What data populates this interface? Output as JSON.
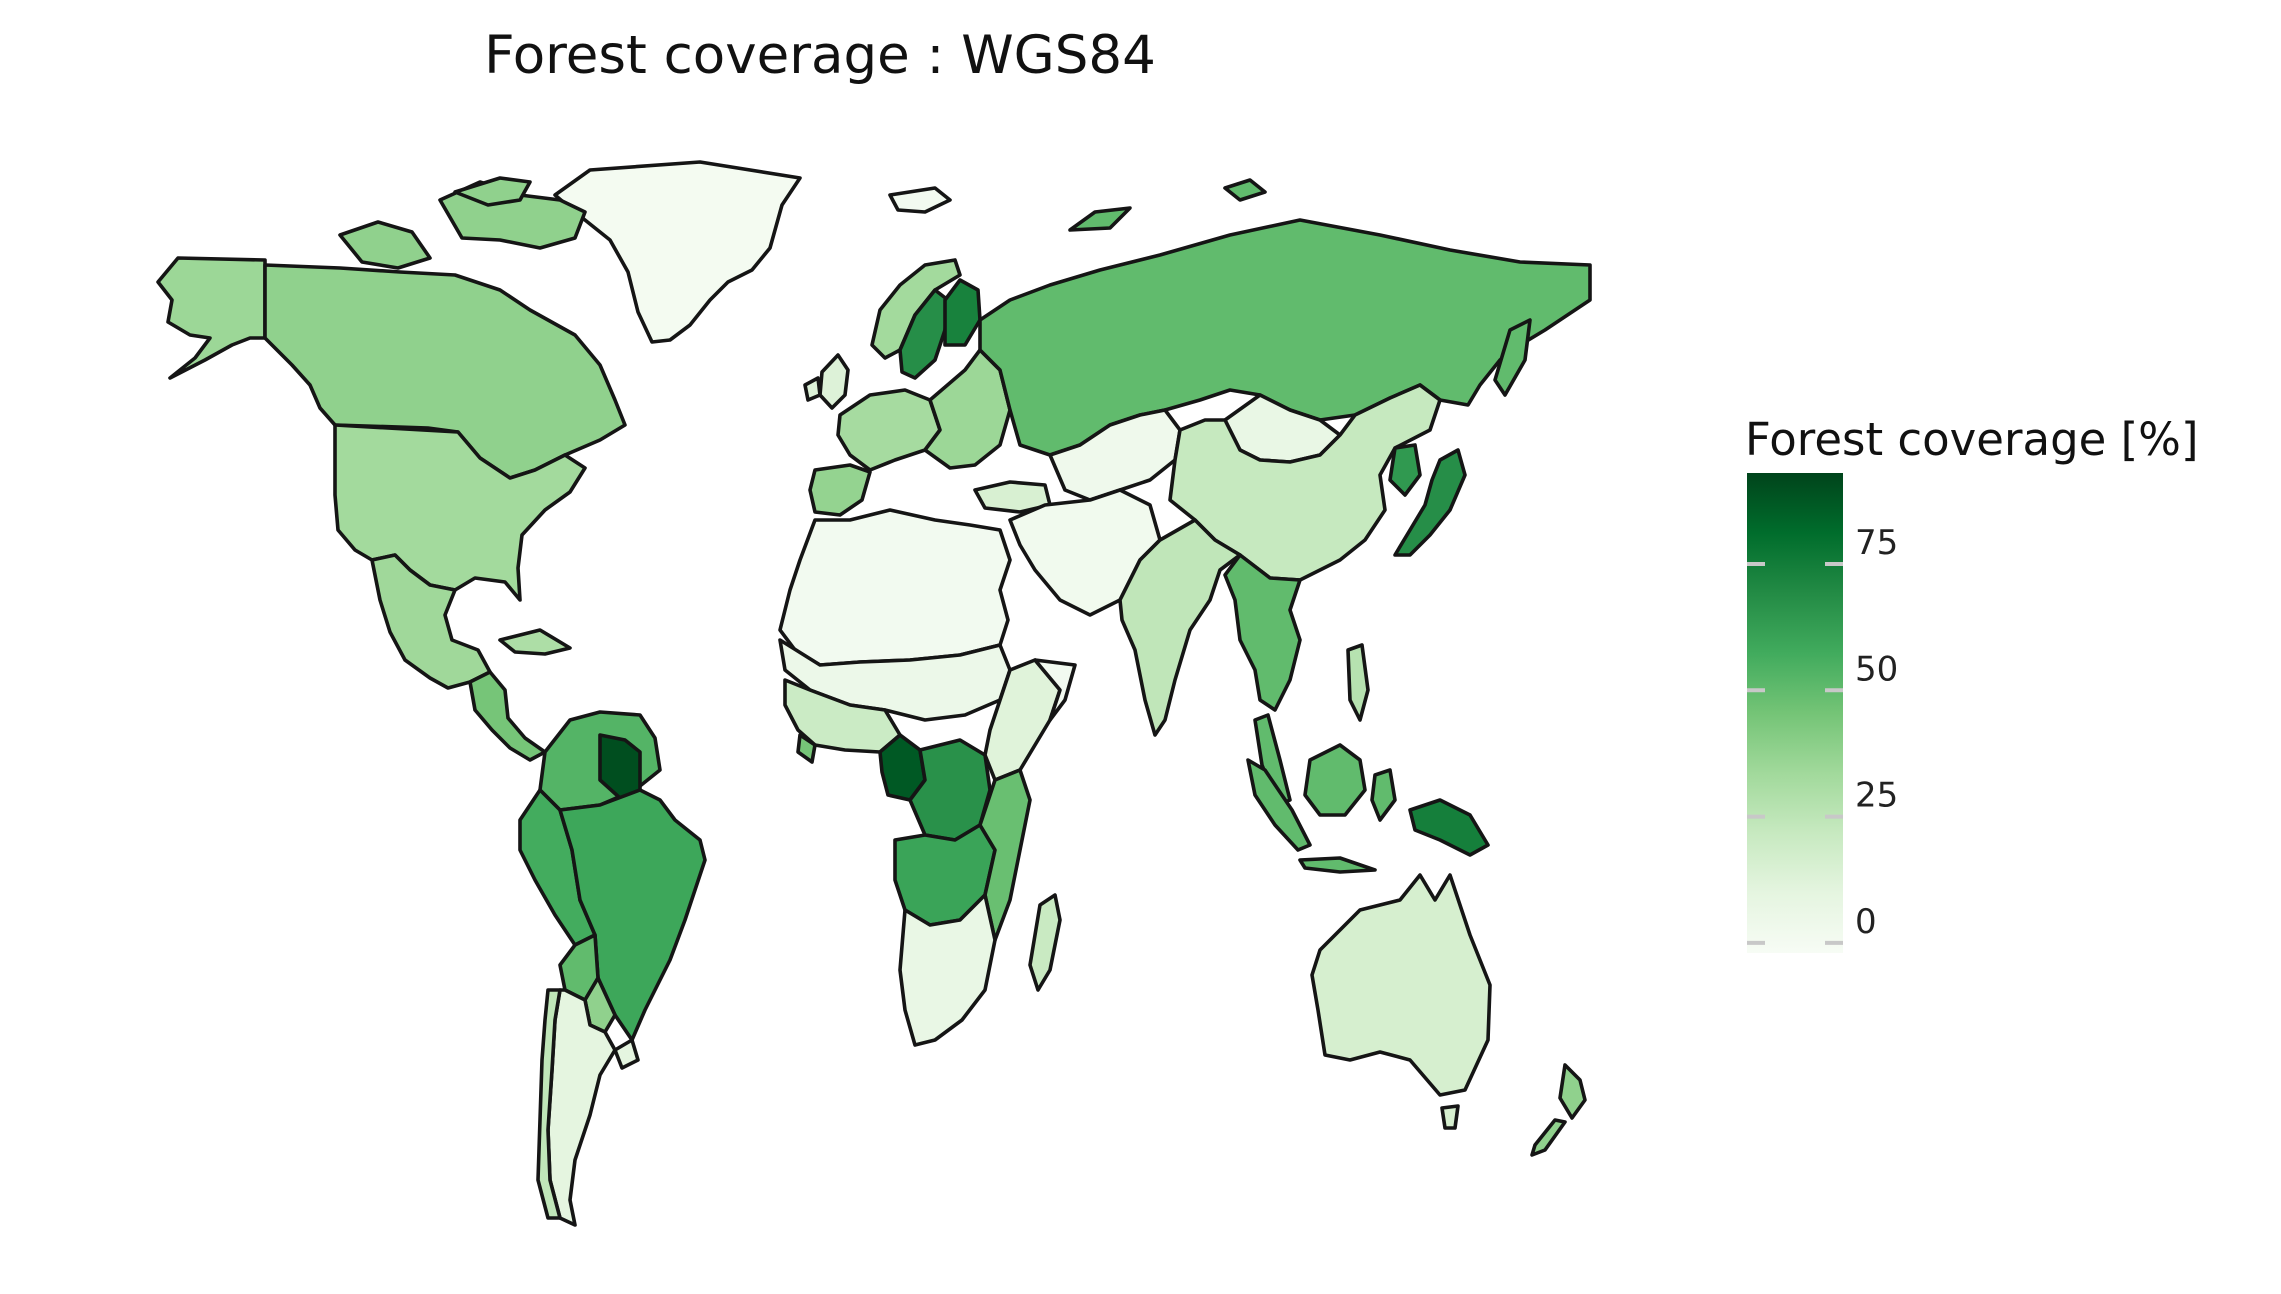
{
  "title": "Forest coverage : WGS84",
  "legend": {
    "title": "Forest coverage [%]",
    "ticks": [
      {
        "value": 0,
        "label": "0"
      },
      {
        "value": 25,
        "label": "25"
      },
      {
        "value": 50,
        "label": "50"
      },
      {
        "value": 75,
        "label": "75"
      }
    ],
    "range": [
      -2,
      93
    ],
    "colors": [
      "#f7fcf5",
      "#e5f5e0",
      "#c7e9c0",
      "#a1d99b",
      "#74c476",
      "#41ab5d",
      "#238b45",
      "#006d2c",
      "#00441b"
    ]
  },
  "chart_data": {
    "type": "choropleth",
    "title": "Forest coverage : WGS84",
    "projection": "WGS84",
    "legend_title": "Forest coverage [%]",
    "legend_placement": "right",
    "value_range": [
      0,
      92
    ],
    "regions": [
      {
        "name": "Greenland",
        "value": 0
      },
      {
        "name": "Canada",
        "value": 38
      },
      {
        "name": "Alaska",
        "value": 35
      },
      {
        "name": "United States",
        "value": 33
      },
      {
        "name": "Mexico",
        "value": 34
      },
      {
        "name": "Central America",
        "value": 45
      },
      {
        "name": "Caribbean",
        "value": 30
      },
      {
        "name": "Venezuela / Colombia",
        "value": 53
      },
      {
        "name": "Guyana / Suriname",
        "value": 90
      },
      {
        "name": "Peru",
        "value": 57
      },
      {
        "name": "Brazil",
        "value": 59
      },
      {
        "name": "Bolivia",
        "value": 50
      },
      {
        "name": "Paraguay",
        "value": 38
      },
      {
        "name": "Argentina",
        "value": 10
      },
      {
        "name": "Chile",
        "value": 24
      },
      {
        "name": "Uruguay",
        "value": 10
      },
      {
        "name": "Iceland",
        "value": 1
      },
      {
        "name": "United Kingdom",
        "value": 13
      },
      {
        "name": "Norway",
        "value": 33
      },
      {
        "name": "Sweden",
        "value": 68
      },
      {
        "name": "Finland",
        "value": 73
      },
      {
        "name": "Western Europe",
        "value": 32
      },
      {
        "name": "Spain / Portugal",
        "value": 37
      },
      {
        "name": "Eastern Europe",
        "value": 35
      },
      {
        "name": "Russia",
        "value": 50
      },
      {
        "name": "Turkey",
        "value": 15
      },
      {
        "name": "Middle East",
        "value": 2
      },
      {
        "name": "Central Asia",
        "value": 3
      },
      {
        "name": "Mongolia",
        "value": 7
      },
      {
        "name": "China",
        "value": 22
      },
      {
        "name": "India",
        "value": 24
      },
      {
        "name": "Southeast Asia",
        "value": 50
      },
      {
        "name": "Japan",
        "value": 68
      },
      {
        "name": "Korea",
        "value": 64
      },
      {
        "name": "Indonesia",
        "value": 50
      },
      {
        "name": "Papua New Guinea",
        "value": 74
      },
      {
        "name": "Philippines",
        "value": 27
      },
      {
        "name": "Australia",
        "value": 16
      },
      {
        "name": "New Zealand",
        "value": 38
      },
      {
        "name": "Sahara / North Africa",
        "value": 1
      },
      {
        "name": "Sahel",
        "value": 5
      },
      {
        "name": "West Africa",
        "value": 20
      },
      {
        "name": "Gabon / Congo",
        "value": 87
      },
      {
        "name": "DR Congo",
        "value": 67
      },
      {
        "name": "East Africa",
        "value": 12
      },
      {
        "name": "Angola / Zambia",
        "value": 60
      },
      {
        "name": "Mozambique",
        "value": 48
      },
      {
        "name": "Southern Africa",
        "value": 7
      },
      {
        "name": "Madagascar",
        "value": 21
      }
    ]
  }
}
